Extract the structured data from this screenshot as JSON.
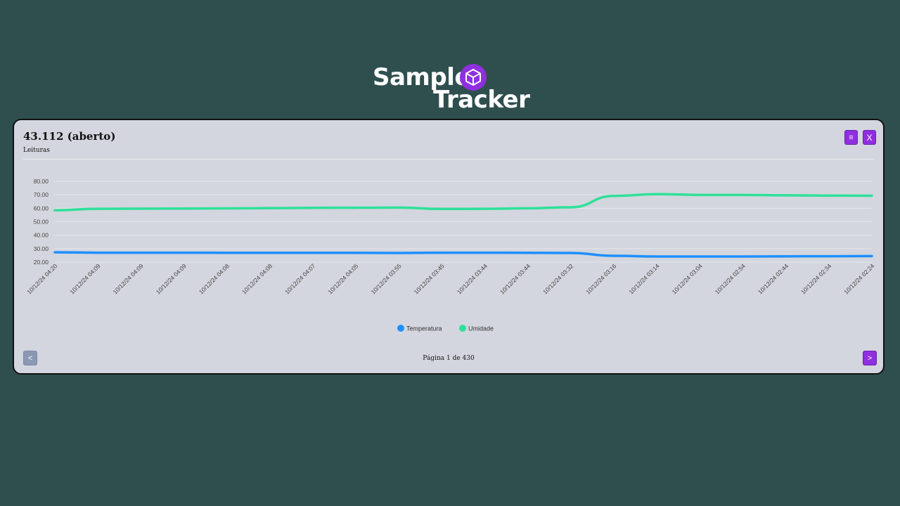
{
  "brand": {
    "line1": "Sample",
    "line2": "Tracker",
    "badge_icon": "cube-icon",
    "badge_color": "#8f2fe0"
  },
  "card": {
    "title": "43.112 (aberto)",
    "subtitle": "Leituras",
    "menu_label": "≡",
    "close_label": "X"
  },
  "pagination": {
    "prev_label": "<",
    "next_label": ">",
    "text": "Página 1 de 430",
    "current_page": 1,
    "total_pages": 430
  },
  "chart_data": {
    "type": "line",
    "categories": [
      "10/12/24 04:20",
      "10/12/24 04:09",
      "10/12/24 04:09",
      "10/12/24 04:09",
      "10/12/24 04:08",
      "10/12/24 04:08",
      "10/12/24 04:07",
      "10/12/24 04:05",
      "10/12/24 03:55",
      "10/12/24 03:45",
      "10/12/24 03:44",
      "10/12/24 03:44",
      "10/12/24 03:32",
      "10/12/24 03:16",
      "10/12/24 03:14",
      "10/12/24 03:04",
      "10/12/24 02:54",
      "10/12/24 02:44",
      "10/12/24 02:34",
      "10/12/24 02:24"
    ],
    "series": [
      {
        "name": "Temperatura",
        "color": "#1e90ff",
        "values": [
          27.3,
          27.0,
          27.0,
          27.0,
          26.9,
          26.9,
          26.9,
          26.9,
          26.8,
          27.0,
          27.0,
          26.9,
          26.8,
          24.7,
          24.2,
          24.2,
          24.2,
          24.3,
          24.4,
          24.5
        ]
      },
      {
        "name": "Umidade",
        "color": "#2ee09a",
        "values": [
          58.5,
          59.6,
          59.7,
          59.8,
          59.9,
          60.1,
          60.3,
          60.4,
          60.5,
          59.5,
          59.6,
          60.0,
          60.7,
          69.2,
          70.5,
          69.9,
          69.9,
          69.6,
          69.4,
          69.3
        ]
      }
    ],
    "yticks": [
      "20.00",
      "30.00",
      "40.00",
      "50.00",
      "60.00",
      "70.00",
      "80.00"
    ],
    "ylim": [
      20,
      80
    ],
    "grid": true,
    "legend": "bottom-center"
  }
}
